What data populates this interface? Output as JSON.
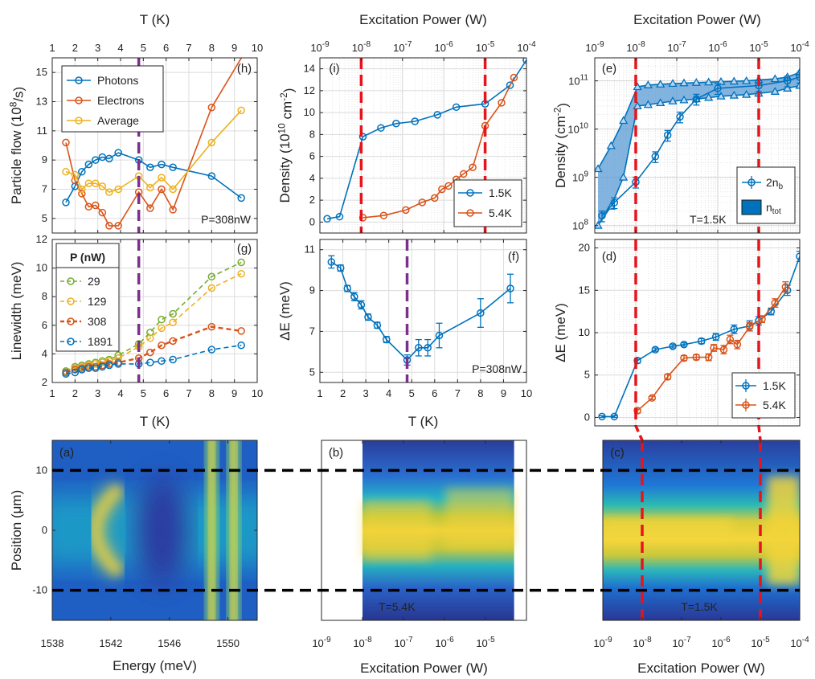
{
  "colors": {
    "blue": "#0072BD",
    "orange": "#D95319",
    "yellow": "#EDB120",
    "green": "#77AC30",
    "red_dash": "#E8141B",
    "purple_dash": "#7E2F8E",
    "black_dash": "#000000",
    "band_fill": "#5A9BD5",
    "legend_box": "#0072BD"
  },
  "chart_data": [
    {
      "id": "h",
      "type": "line",
      "panel_label": "(h)",
      "ylabel": "Particle flow (10^8/s)",
      "xlabel_top": "T (K)",
      "xlim": [
        1,
        10
      ],
      "ylim": [
        4,
        16
      ],
      "xticks": [
        1,
        2,
        3,
        4,
        5,
        6,
        7,
        8,
        9,
        10
      ],
      "yticks": [
        5,
        7,
        9,
        11,
        13,
        15
      ],
      "annotation": "P=308nW",
      "legend_position": "top-left",
      "vline_x": 4.8,
      "series": [
        {
          "name": "Photons",
          "color": "blue",
          "x": [
            1.6,
            2.0,
            2.3,
            2.6,
            2.9,
            3.2,
            3.5,
            3.9,
            4.8,
            5.3,
            5.8,
            6.3,
            8.0,
            9.3
          ],
          "y": [
            6.1,
            7.2,
            8.2,
            8.7,
            9.0,
            9.2,
            9.1,
            9.5,
            9.0,
            8.5,
            8.7,
            8.5,
            7.9,
            6.4
          ]
        },
        {
          "name": "Electrons",
          "color": "orange",
          "x": [
            1.6,
            2.0,
            2.3,
            2.6,
            2.9,
            3.2,
            3.5,
            3.9,
            4.8,
            5.3,
            5.8,
            6.3,
            8.0,
            9.5
          ],
          "y": [
            10.2,
            7.6,
            6.7,
            5.8,
            5.9,
            5.4,
            4.5,
            4.5,
            6.8,
            5.7,
            7.0,
            5.6,
            12.6,
            16.5
          ]
        },
        {
          "name": "Average",
          "color": "yellow",
          "x": [
            1.6,
            2.0,
            2.3,
            2.6,
            2.9,
            3.2,
            3.5,
            3.9,
            4.8,
            5.3,
            5.8,
            6.3,
            8.0,
            9.3
          ],
          "y": [
            8.2,
            8.0,
            7.0,
            7.4,
            7.4,
            7.2,
            6.8,
            7.0,
            7.9,
            7.1,
            7.8,
            7.0,
            10.2,
            12.4
          ]
        }
      ]
    },
    {
      "id": "g",
      "type": "line",
      "panel_label": "(g)",
      "ylabel": "Linewidth (meV)",
      "xlabel": "T (K)",
      "xlim": [
        1,
        10
      ],
      "ylim": [
        2,
        12
      ],
      "xticks": [
        1,
        2,
        3,
        4,
        5,
        6,
        7,
        8,
        9,
        10
      ],
      "yticks": [
        2,
        4,
        6,
        8,
        10,
        12
      ],
      "legend_title": "P (nW)",
      "legend_position": "top-left",
      "vline_x": 4.8,
      "series": [
        {
          "name": "29",
          "color": "green",
          "x": [
            1.6,
            2.0,
            2.3,
            2.6,
            2.9,
            3.2,
            3.5,
            3.9,
            4.8,
            5.3,
            5.8,
            6.3,
            8.0,
            9.3
          ],
          "y": [
            2.8,
            3.1,
            3.2,
            3.3,
            3.4,
            3.5,
            3.6,
            3.9,
            4.7,
            5.5,
            6.4,
            6.8,
            9.4,
            10.4
          ]
        },
        {
          "name": "129",
          "color": "yellow",
          "x": [
            1.6,
            2.0,
            2.3,
            2.6,
            2.9,
            3.2,
            3.5,
            3.9,
            4.8,
            5.3,
            5.8,
            6.3,
            8.0,
            9.3
          ],
          "y": [
            2.7,
            3.0,
            3.1,
            3.2,
            3.3,
            3.4,
            3.5,
            3.7,
            4.5,
            5.1,
            5.8,
            6.2,
            8.6,
            9.6
          ]
        },
        {
          "name": "308",
          "color": "orange",
          "x": [
            1.6,
            2.0,
            2.3,
            2.6,
            2.9,
            3.2,
            3.5,
            3.9,
            4.8,
            5.3,
            5.8,
            6.3,
            8.0,
            9.3
          ],
          "y": [
            2.7,
            2.9,
            3.0,
            3.1,
            3.1,
            3.2,
            3.3,
            3.4,
            3.7,
            4.1,
            4.6,
            4.9,
            5.9,
            5.6
          ]
        },
        {
          "name": "1891",
          "color": "blue",
          "x": [
            1.6,
            2.0,
            2.3,
            2.6,
            2.9,
            3.2,
            3.5,
            3.9,
            4.8,
            5.3,
            5.8,
            6.3,
            8.0,
            9.3
          ],
          "y": [
            2.6,
            2.7,
            2.9,
            3.0,
            3.0,
            3.1,
            3.2,
            3.3,
            3.3,
            3.4,
            3.5,
            3.6,
            4.3,
            4.6
          ]
        }
      ]
    },
    {
      "id": "i",
      "type": "line",
      "panel_label": "(i)",
      "ylabel": "Density (10^10 cm^-2)",
      "xlabel_top": "Excitation Power (W)",
      "xscale": "log",
      "xlim": [
        1e-09,
        0.0001
      ],
      "ylim": [
        -1,
        15
      ],
      "xtick_exponents": [
        -9,
        -8,
        -7,
        -6,
        -5,
        -4
      ],
      "yticks": [
        0,
        2,
        4,
        6,
        8,
        10,
        12,
        14
      ],
      "legend_position": "bottom-right",
      "vlines_x": [
        1e-08,
        1e-05
      ],
      "series": [
        {
          "name": "1.5K",
          "color": "blue",
          "x": [
            1.5e-09,
            3e-09,
            1.1e-08,
            3e-08,
            7e-08,
            2e-07,
            7e-07,
            2e-06,
            1e-05,
            4e-05,
            0.0001
          ],
          "y": [
            0.3,
            0.5,
            7.8,
            8.6,
            9.0,
            9.2,
            9.8,
            10.5,
            10.8,
            12.5,
            14.8
          ]
        },
        {
          "name": "5.4K",
          "color": "orange",
          "x": [
            1.1e-08,
            3.5e-08,
            1.2e-07,
            3e-07,
            6e-07,
            9e-07,
            1.3e-06,
            2e-06,
            3e-06,
            5e-06,
            1e-05,
            2.5e-05,
            5e-05
          ],
          "y": [
            0.4,
            0.6,
            1.1,
            1.8,
            2.2,
            3.0,
            3.3,
            3.9,
            4.4,
            5.0,
            8.8,
            10.9,
            13.2
          ]
        }
      ]
    },
    {
      "id": "f",
      "type": "scatter",
      "panel_label": "(f)",
      "ylabel": "ΔE (meV)",
      "xlabel": "T (K)",
      "xlim": [
        1,
        10
      ],
      "ylim": [
        4.5,
        11.5
      ],
      "xticks": [
        1,
        2,
        3,
        4,
        5,
        6,
        7,
        8,
        9,
        10
      ],
      "yticks": [
        5,
        7,
        9,
        11
      ],
      "annotation": "P=308nW",
      "vline_x": 4.8,
      "series": [
        {
          "name": "",
          "color": "blue",
          "x": [
            1.5,
            1.9,
            2.2,
            2.5,
            2.8,
            3.1,
            3.5,
            3.9,
            4.8,
            5.3,
            5.7,
            6.2,
            8.0,
            9.3
          ],
          "y": [
            10.4,
            10.1,
            9.1,
            8.7,
            8.3,
            7.7,
            7.3,
            6.6,
            5.6,
            6.2,
            6.2,
            6.8,
            7.9,
            9.1
          ],
          "err": [
            0.3,
            0.15,
            0.15,
            0.2,
            0.2,
            0.15,
            0.15,
            0.15,
            0.25,
            0.4,
            0.4,
            0.6,
            0.7,
            0.7
          ]
        }
      ]
    },
    {
      "id": "e",
      "type": "area",
      "panel_label": "(e)",
      "ylabel": "Density (cm^-2)",
      "xlabel_top": "Excitation Power (W)",
      "xscale": "log",
      "yscale": "log",
      "xlim": [
        1e-09,
        0.0001
      ],
      "ylim": [
        70000000.0,
        300000000000.0
      ],
      "xtick_exponents": [
        -9,
        -8,
        -7,
        -6,
        -5,
        -4
      ],
      "ytick_exponents": [
        8,
        9,
        10,
        11
      ],
      "annotation": "T=1.5K",
      "legend_position": "bottom-right",
      "vlines_x": [
        1e-08,
        1e-05
      ],
      "series": [
        {
          "name": "2n_b",
          "color": "blue",
          "x": [
            1.5e-09,
            3e-09,
            1e-08,
            3e-08,
            6e-08,
            1.2e-07,
            3e-07,
            1e-06,
            1e-05,
            5e-05,
            0.0001
          ],
          "y": [
            160000000.0,
            300000000.0,
            800000000.0,
            2700000000.0,
            7500000000.0,
            18000000000.0,
            42000000000.0,
            70000000000.0,
            80000000000.0,
            100000000000.0,
            120000000000.0
          ]
        },
        {
          "name": "n_tot",
          "color": "band_fill",
          "x": [
            1.2e-09,
            2.5e-09,
            5e-09,
            1.1e-08,
            2e-08,
            4e-08,
            8e-08,
            1.5e-07,
            3e-07,
            6e-07,
            1.2e-06,
            2.5e-06,
            5e-06,
            1e-05,
            2.5e-05,
            5e-05,
            0.0001
          ],
          "upper": [
            1500000000.0,
            4500000000.0,
            15000000000.0,
            75000000000.0,
            82000000000.0,
            85000000000.0,
            88000000000.0,
            90000000000.0,
            92000000000.0,
            94000000000.0,
            96000000000.0,
            98000000000.0,
            100000000000.0,
            105000000000.0,
            110000000000.0,
            120000000000.0,
            150000000000.0
          ],
          "lower": [
            100000000.0,
            250000000.0,
            1000000000.0,
            30000000000.0,
            32000000000.0,
            35000000000.0,
            38000000000.0,
            40000000000.0,
            42000000000.0,
            45000000000.0,
            48000000000.0,
            50000000000.0,
            52000000000.0,
            55000000000.0,
            60000000000.0,
            70000000000.0,
            80000000000.0
          ]
        }
      ]
    },
    {
      "id": "d",
      "type": "line",
      "panel_label": "(d)",
      "ylabel": "ΔE (meV)",
      "xscale": "log",
      "xlim": [
        1e-09,
        0.0001
      ],
      "ylim": [
        -1,
        21
      ],
      "yticks": [
        0,
        5,
        10,
        15,
        20
      ],
      "legend_position": "bottom-right",
      "vlines_x": [
        1e-08,
        1e-05
      ],
      "series": [
        {
          "name": "1.5K",
          "color": "blue",
          "x": [
            1.5e-09,
            3e-09,
            1.1e-08,
            3e-08,
            8e-08,
            1.5e-07,
            4e-07,
            9e-07,
            2.5e-06,
            6e-06,
            1e-05,
            2e-05,
            5e-05,
            0.0001
          ],
          "y": [
            0.1,
            0.1,
            6.7,
            8.0,
            8.4,
            8.6,
            9.0,
            9.5,
            10.4,
            10.8,
            11.4,
            12.5,
            15.0,
            19.0
          ],
          "err": [
            0.1,
            0.1,
            0.3,
            0.2,
            0.2,
            0.2,
            0.3,
            0.4,
            0.5,
            0.6,
            0.5,
            0.4,
            0.6,
            0.6
          ]
        },
        {
          "name": "5.4K",
          "color": "orange",
          "x": [
            1.1e-08,
            2.5e-08,
            6e-08,
            1.5e-07,
            3e-07,
            6e-07,
            8e-07,
            1.4e-06,
            2e-06,
            3e-06,
            6e-06,
            1.2e-05,
            2.5e-05,
            4.5e-05
          ],
          "y": [
            0.8,
            2.3,
            4.8,
            7.0,
            7.1,
            7.1,
            8.2,
            8.0,
            9.2,
            8.6,
            10.7,
            11.6,
            13.5,
            15.4
          ],
          "err": [
            0.3,
            0.2,
            0.3,
            0.3,
            0.3,
            0.4,
            0.4,
            0.5,
            0.5,
            0.5,
            0.5,
            0.4,
            0.5,
            0.6
          ]
        }
      ]
    },
    {
      "id": "a",
      "type": "heatmap",
      "panel_label": "(a)",
      "xlabel": "Energy (meV)",
      "ylabel": "Position (μm)",
      "xlim": [
        1538,
        1552
      ],
      "ylim": [
        -15,
        15
      ],
      "xticks": [
        1538,
        1542,
        1546,
        1550
      ],
      "yticks": [
        -10,
        0,
        10
      ],
      "hlines_y": [
        10,
        -10
      ]
    },
    {
      "id": "b",
      "type": "heatmap",
      "panel_label": "(b)",
      "xlabel": "Excitation Power (W)",
      "xscale": "log",
      "xlim": [
        1e-09,
        0.0001
      ],
      "ylim": [
        -15,
        15
      ],
      "xtick_exponents": [
        -9,
        -8,
        -7,
        -6,
        -5
      ],
      "annotation": "T=5.4K",
      "data_xrange": [
        1e-08,
        5e-05
      ]
    },
    {
      "id": "c",
      "type": "heatmap",
      "panel_label": "(c)",
      "xlabel": "Excitation Power (W)",
      "xscale": "log",
      "xlim": [
        1e-09,
        0.0001
      ],
      "ylim": [
        -15,
        15
      ],
      "xtick_exponents": [
        -9,
        -8,
        -7,
        -6,
        -5,
        -4
      ],
      "annotation": "T=1.5K",
      "data_xrange": [
        1e-09,
        0.0001
      ],
      "vlines_x": [
        1e-08,
        1e-05
      ]
    }
  ]
}
